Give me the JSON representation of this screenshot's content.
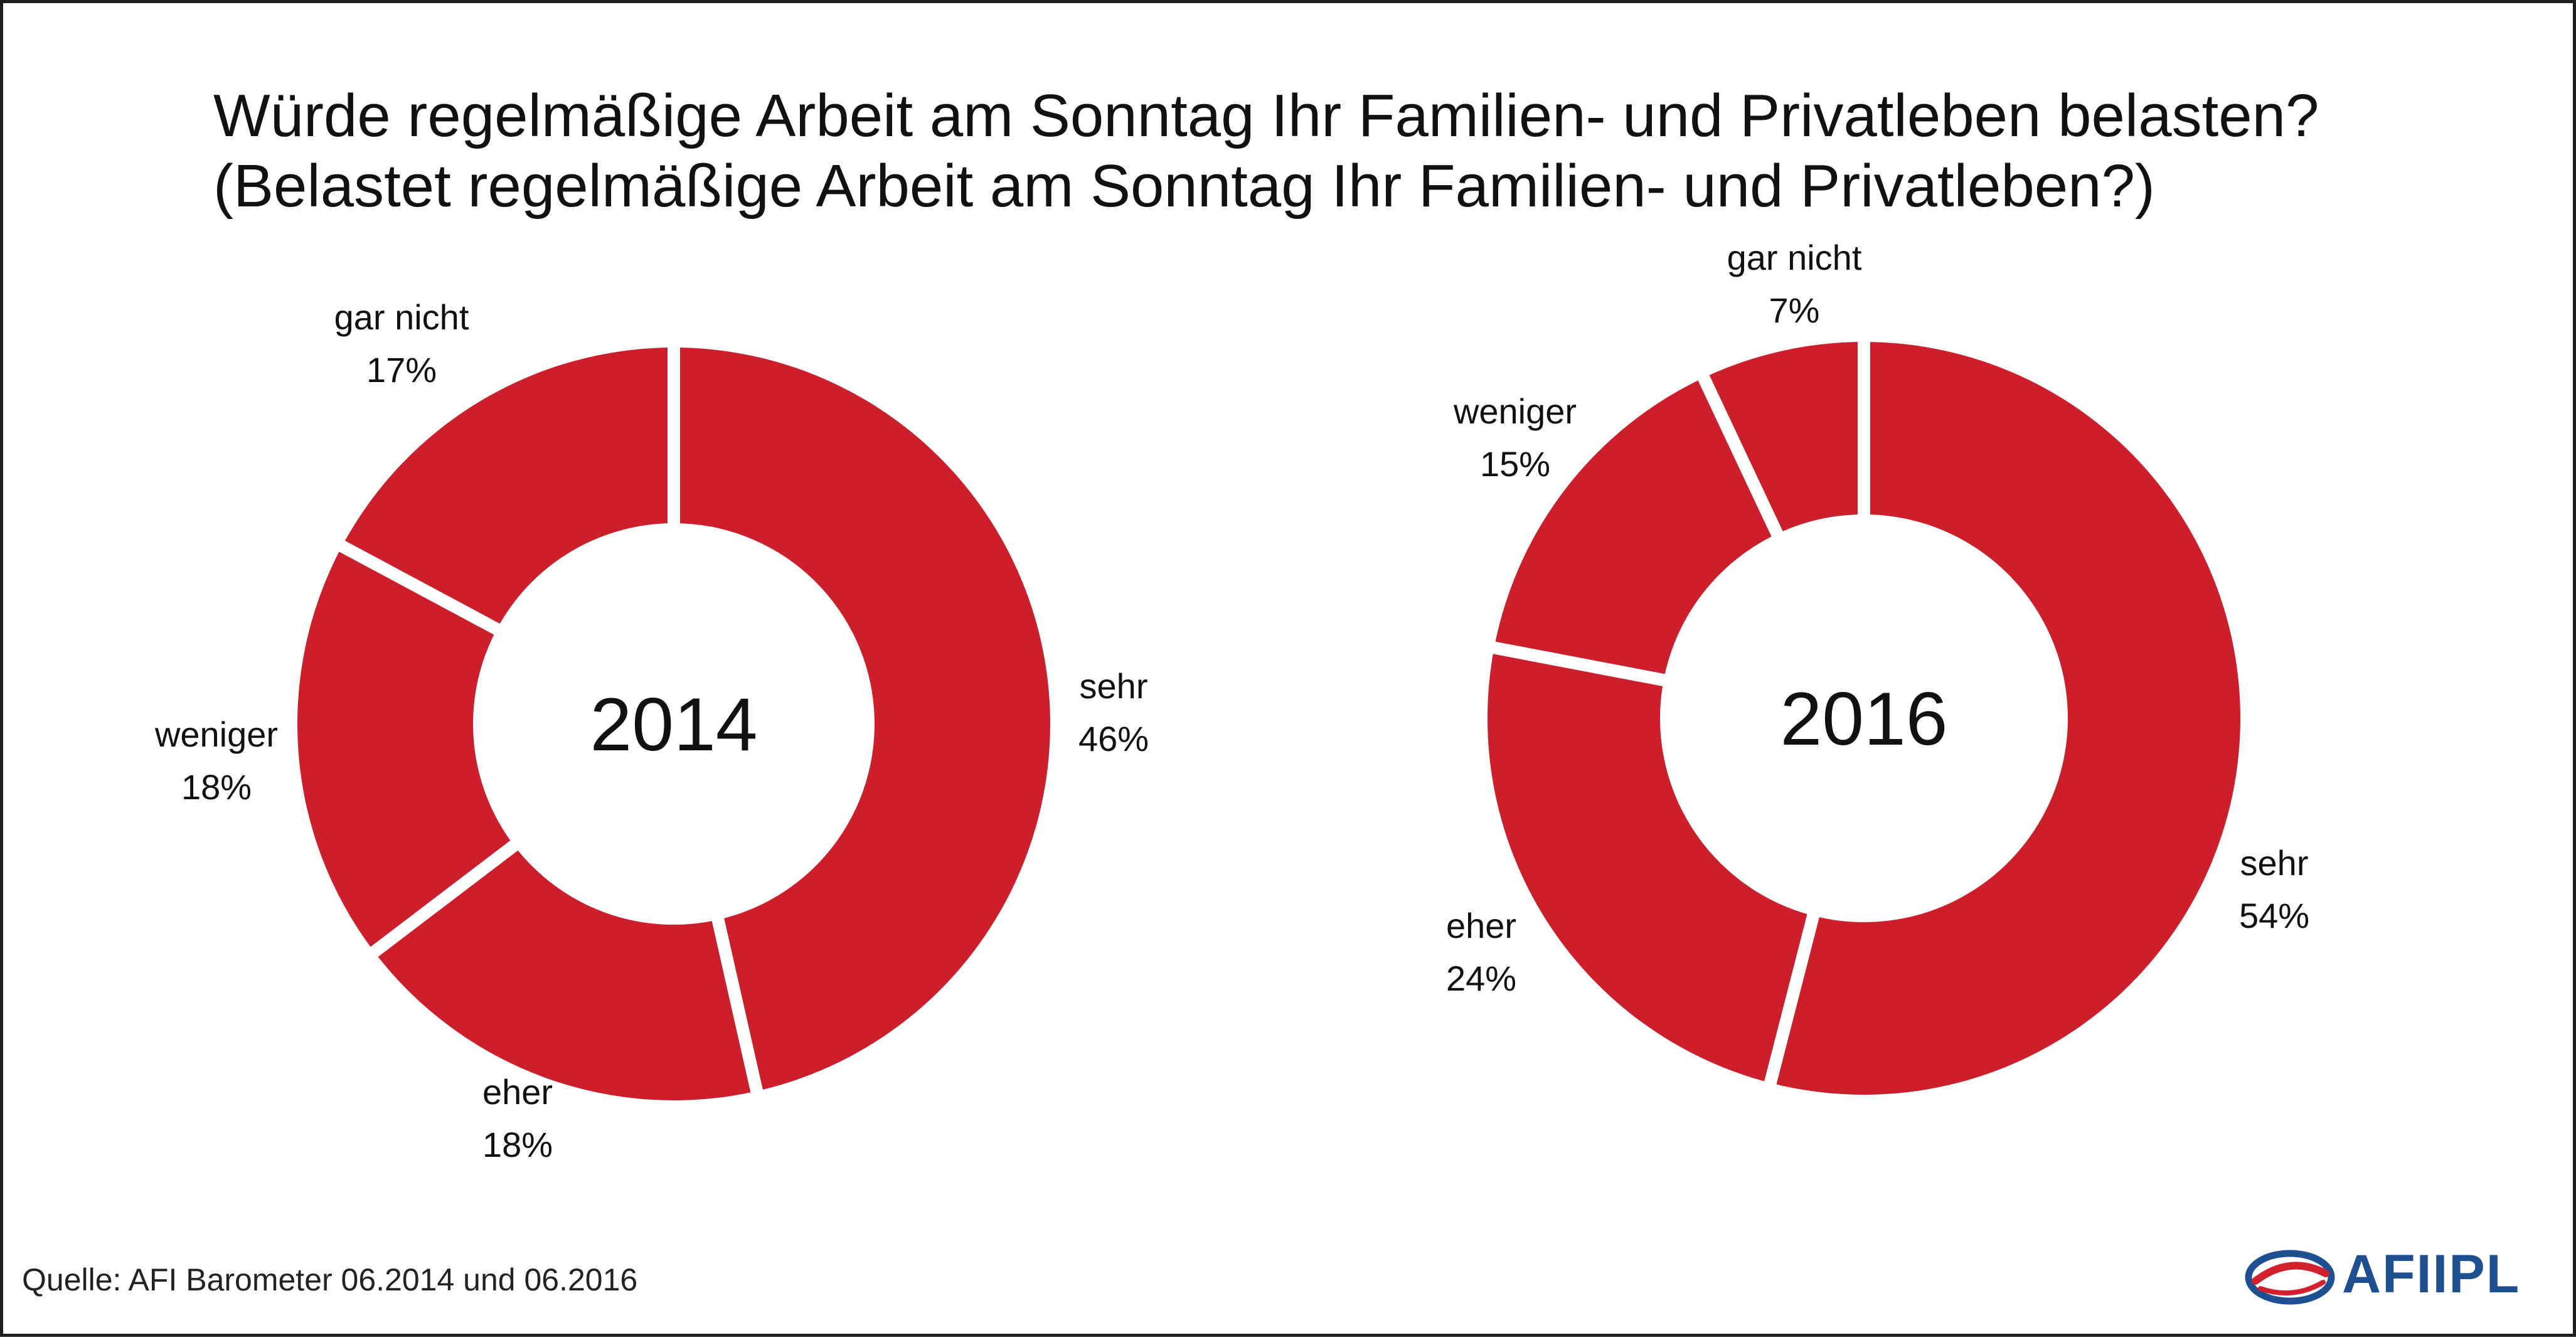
{
  "title": {
    "line1": "Würde regelmäßige Arbeit am Sonntag Ihr Familien- und Privatleben belasten?",
    "line2": "(Belastet regelmäßige Arbeit am Sonntag Ihr Familien- und Privatleben?)"
  },
  "colors": {
    "slice": "#cc1f2b",
    "separator": "#ffffff",
    "logo_blue": "#1d4f91",
    "logo_red": "#d2202f"
  },
  "chart_data": [
    {
      "type": "pie",
      "center_label": "2014",
      "slices": [
        {
          "label": "sehr",
          "value": 46,
          "value_label": "46%"
        },
        {
          "label": "eher",
          "value": 18,
          "value_label": "18%"
        },
        {
          "label": "weniger",
          "value": 18,
          "value_label": "18%"
        },
        {
          "label": "gar nicht",
          "value": 17,
          "value_label": "17%"
        }
      ]
    },
    {
      "type": "pie",
      "center_label": "2016",
      "slices": [
        {
          "label": "sehr",
          "value": 54,
          "value_label": "54%"
        },
        {
          "label": "eher",
          "value": 24,
          "value_label": "24%"
        },
        {
          "label": "weniger",
          "value": 15,
          "value_label": "15%"
        },
        {
          "label": "gar nicht",
          "value": 7,
          "value_label": "7%"
        }
      ]
    }
  ],
  "source": "Quelle: AFI Barometer 06.2014 und 06.2016",
  "logo": {
    "text": "AFIIPL",
    "icon": "swirl-logo-icon"
  }
}
